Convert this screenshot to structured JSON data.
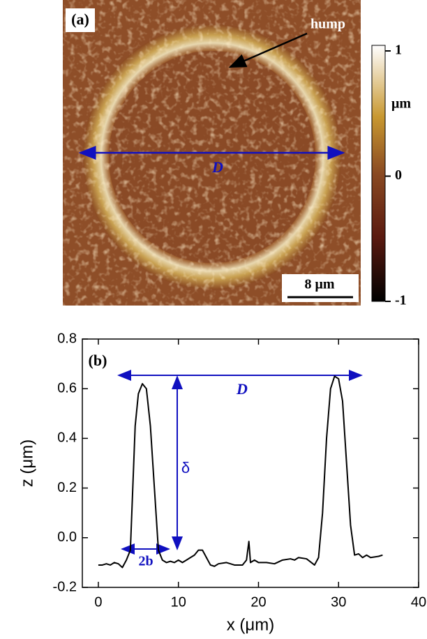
{
  "chart_data": [
    {
      "type": "image",
      "panel_label": "(a)",
      "annotations": [
        "hump",
        "D"
      ],
      "scale_bar": "8 μm",
      "colorbar": {
        "label": "μm",
        "lim": [
          -1,
          1
        ],
        "ticks": [
          1,
          0,
          -1
        ]
      }
    },
    {
      "type": "line",
      "panel_label": "(b)",
      "xlabel": "x (μm)",
      "ylabel": "z (μm)",
      "annotations": [
        "D",
        "δ",
        "2b"
      ],
      "color": "#000000",
      "x": [
        0,
        0.5,
        1,
        1.5,
        2,
        2.5,
        3,
        3.5,
        4,
        4.3,
        4.6,
        5,
        5.5,
        6,
        6.5,
        7,
        7.5,
        8,
        8.5,
        9,
        9.5,
        10,
        10.5,
        11,
        11.5,
        12,
        12.5,
        13,
        13.5,
        14,
        14.5,
        15,
        16,
        17,
        18,
        18.5,
        18.8,
        19,
        19.5,
        20,
        21,
        22,
        23,
        24,
        24.5,
        25,
        26,
        27,
        27.5,
        28,
        28.5,
        29,
        29.5,
        30,
        30.5,
        31,
        31.5,
        32,
        32.5,
        33,
        33.5,
        34,
        35,
        35.5
      ],
      "values": [
        -0.11,
        -0.11,
        -0.105,
        -0.11,
        -0.1,
        -0.105,
        -0.12,
        -0.09,
        -0.05,
        0.2,
        0.45,
        0.58,
        0.62,
        0.6,
        0.45,
        0.2,
        -0.05,
        -0.09,
        -0.1,
        -0.095,
        -0.1,
        -0.09,
        -0.1,
        -0.09,
        -0.08,
        -0.07,
        -0.05,
        -0.05,
        -0.08,
        -0.11,
        -0.115,
        -0.105,
        -0.1,
        -0.11,
        -0.11,
        -0.09,
        -0.015,
        -0.1,
        -0.09,
        -0.1,
        -0.1,
        -0.105,
        -0.09,
        -0.085,
        -0.09,
        -0.08,
        -0.085,
        -0.11,
        -0.08,
        0.1,
        0.4,
        0.6,
        0.65,
        0.64,
        0.55,
        0.3,
        0.05,
        -0.07,
        -0.065,
        -0.08,
        -0.07,
        -0.08,
        -0.075,
        -0.07
      ],
      "xlim": [
        -2,
        40
      ],
      "xticks": [
        0,
        10,
        20,
        30,
        40
      ],
      "ylim": [
        -0.2,
        0.8
      ],
      "yticks": [
        -0.2,
        {
          "value": 0,
          "label": "0.0"
        },
        0.2,
        0.4,
        0.6,
        0.8
      ]
    }
  ]
}
